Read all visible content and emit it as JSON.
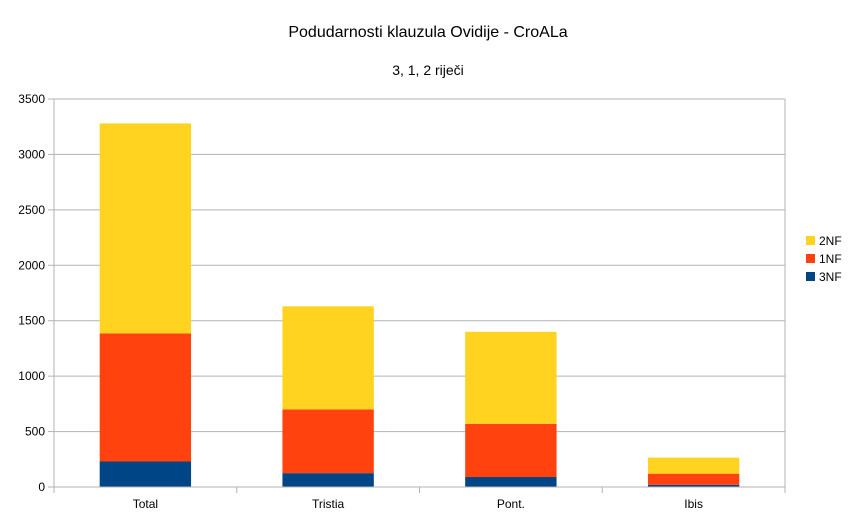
{
  "chart_data": {
    "type": "bar",
    "stacked": true,
    "title": "Podudarnosti klauzula Ovidije - CroALa",
    "subtitle": "3, 1, 2 riječi",
    "xlabel": "",
    "ylabel": "",
    "categories": [
      "Total",
      "Tristia",
      "Pont.",
      "Ibis"
    ],
    "ylim": [
      0,
      3500
    ],
    "yticks": [
      0,
      500,
      1000,
      1500,
      2000,
      2500,
      3000,
      3500
    ],
    "grid": true,
    "legend_position": "right",
    "series": [
      {
        "name": "3NF",
        "color": "#004586",
        "values": [
          230,
          125,
          90,
          20
        ]
      },
      {
        "name": "1NF",
        "color": "#FF420E",
        "values": [
          1155,
          575,
          480,
          100
        ]
      },
      {
        "name": "2NF",
        "color": "#FFD320",
        "values": [
          1895,
          930,
          830,
          145
        ]
      }
    ]
  }
}
